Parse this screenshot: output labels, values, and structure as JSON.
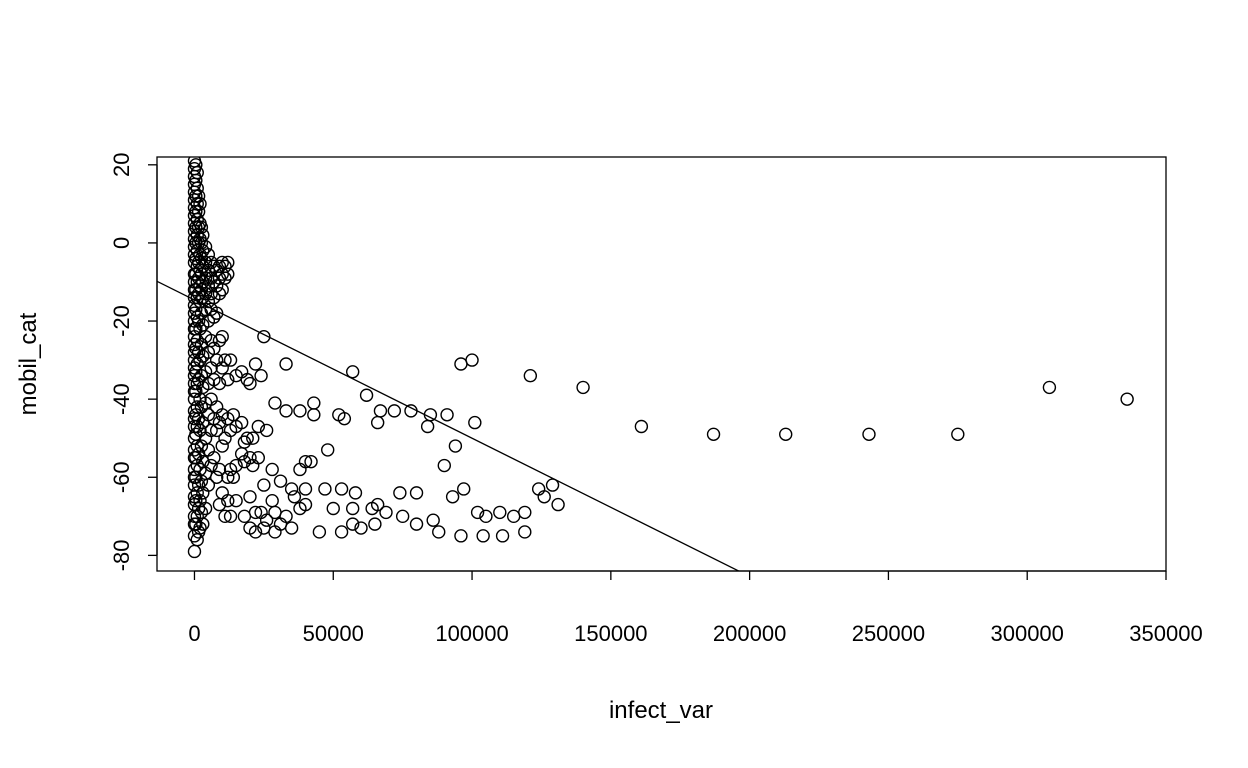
{
  "chart_data": {
    "type": "scatter",
    "title": "",
    "xlabel": "infect_var",
    "ylabel": "mobil_cat",
    "xlim": [
      -13500,
      350000
    ],
    "ylim": [
      -84,
      22
    ],
    "x_ticks": [
      0,
      50000,
      100000,
      150000,
      200000,
      250000,
      300000,
      350000
    ],
    "x_tick_labels": [
      "0",
      "50000",
      "100000",
      "150000",
      "200000",
      "250000",
      "300000",
      "350000"
    ],
    "y_ticks": [
      20,
      0,
      -20,
      -40,
      -60,
      -80
    ],
    "y_tick_labels": [
      "20",
      "0",
      "-20",
      "-40",
      "-60",
      "-80"
    ],
    "grid": false,
    "legend": "none",
    "marker": "open-circle",
    "colors": {
      "points": "#000000",
      "line": "#000000",
      "background": "#ffffff"
    },
    "regression_line": {
      "intercept": -14.6,
      "slope": -0.000354
    },
    "points": [
      [
        0,
        21
      ],
      [
        0,
        19
      ],
      [
        0,
        17
      ],
      [
        0,
        15
      ],
      [
        0,
        13
      ],
      [
        0,
        11
      ],
      [
        0,
        9
      ],
      [
        0,
        7
      ],
      [
        0,
        5
      ],
      [
        0,
        3
      ],
      [
        0,
        1
      ],
      [
        0,
        -1
      ],
      [
        0,
        -3
      ],
      [
        0,
        -5
      ],
      [
        0,
        -8
      ],
      [
        0,
        -10
      ],
      [
        0,
        -12
      ],
      [
        0,
        -14
      ],
      [
        0,
        -16
      ],
      [
        0,
        -18
      ],
      [
        0,
        -20
      ],
      [
        0,
        -22
      ],
      [
        0,
        -24
      ],
      [
        0,
        -26
      ],
      [
        0,
        -28
      ],
      [
        0,
        -30
      ],
      [
        0,
        -32
      ],
      [
        0,
        -34
      ],
      [
        0,
        -36
      ],
      [
        0,
        -38
      ],
      [
        0,
        -40
      ],
      [
        0,
        -43
      ],
      [
        0,
        -45
      ],
      [
        0,
        -47
      ],
      [
        0,
        -50
      ],
      [
        0,
        -53
      ],
      [
        0,
        -55
      ],
      [
        0,
        -58
      ],
      [
        0,
        -60
      ],
      [
        0,
        -62
      ],
      [
        0,
        -65
      ],
      [
        0,
        -67
      ],
      [
        0,
        -70
      ],
      [
        0,
        -72
      ],
      [
        0,
        -75
      ],
      [
        0,
        -79
      ],
      [
        500,
        20
      ],
      [
        500,
        16
      ],
      [
        500,
        12
      ],
      [
        500,
        8
      ],
      [
        500,
        4
      ],
      [
        500,
        0
      ],
      [
        500,
        -4
      ],
      [
        500,
        -8
      ],
      [
        500,
        -12
      ],
      [
        500,
        -17
      ],
      [
        500,
        -22
      ],
      [
        500,
        -27
      ],
      [
        500,
        -33
      ],
      [
        500,
        -38
      ],
      [
        500,
        -44
      ],
      [
        500,
        -49
      ],
      [
        500,
        -55
      ],
      [
        500,
        -60
      ],
      [
        500,
        -66
      ],
      [
        500,
        -72
      ],
      [
        1000,
        18
      ],
      [
        1000,
        14
      ],
      [
        1000,
        10
      ],
      [
        1000,
        6
      ],
      [
        1000,
        2
      ],
      [
        1000,
        -2
      ],
      [
        1000,
        -6
      ],
      [
        1000,
        -10
      ],
      [
        1000,
        -14
      ],
      [
        1000,
        -19
      ],
      [
        1000,
        -25
      ],
      [
        1000,
        -31
      ],
      [
        1000,
        -36
      ],
      [
        1000,
        -42
      ],
      [
        1000,
        -47
      ],
      [
        1000,
        -52
      ],
      [
        1000,
        -57
      ],
      [
        1000,
        -64
      ],
      [
        1000,
        -70
      ],
      [
        1000,
        -76
      ],
      [
        1500,
        12
      ],
      [
        1500,
        8
      ],
      [
        1500,
        4
      ],
      [
        1500,
        0
      ],
      [
        1500,
        -5
      ],
      [
        1500,
        -9
      ],
      [
        1500,
        -13
      ],
      [
        1500,
        -20
      ],
      [
        1500,
        -28
      ],
      [
        1500,
        -35
      ],
      [
        1500,
        -45
      ],
      [
        1500,
        -54
      ],
      [
        1500,
        -62
      ],
      [
        1500,
        -68
      ],
      [
        1500,
        -74
      ],
      [
        2000,
        10
      ],
      [
        2000,
        5
      ],
      [
        2000,
        1
      ],
      [
        2000,
        -3
      ],
      [
        2000,
        -7
      ],
      [
        2000,
        -11
      ],
      [
        2000,
        -15
      ],
      [
        2000,
        -22
      ],
      [
        2000,
        -30
      ],
      [
        2000,
        -40
      ],
      [
        2000,
        -48
      ],
      [
        2000,
        -58
      ],
      [
        2000,
        -66
      ],
      [
        2000,
        -73
      ],
      [
        2500,
        4
      ],
      [
        2500,
        0
      ],
      [
        2500,
        -4
      ],
      [
        2500,
        -8
      ],
      [
        2500,
        -12
      ],
      [
        2500,
        -18
      ],
      [
        2500,
        -26
      ],
      [
        2500,
        -34
      ],
      [
        2500,
        -42
      ],
      [
        2500,
        -52
      ],
      [
        2500,
        -61
      ],
      [
        2500,
        -69
      ],
      [
        3000,
        2
      ],
      [
        3000,
        -2
      ],
      [
        3000,
        -6
      ],
      [
        3000,
        -10
      ],
      [
        3000,
        -14
      ],
      [
        3000,
        -21
      ],
      [
        3000,
        -29
      ],
      [
        3000,
        -37
      ],
      [
        3000,
        -46
      ],
      [
        3000,
        -56
      ],
      [
        3000,
        -64
      ],
      [
        3000,
        -72
      ],
      [
        4000,
        -1
      ],
      [
        4000,
        -5
      ],
      [
        4000,
        -9
      ],
      [
        4000,
        -13
      ],
      [
        4000,
        -17
      ],
      [
        4000,
        -24
      ],
      [
        4000,
        -33
      ],
      [
        4000,
        -41
      ],
      [
        4000,
        -50
      ],
      [
        4000,
        -59
      ],
      [
        4000,
        -68
      ],
      [
        5000,
        -3
      ],
      [
        5000,
        -7
      ],
      [
        5000,
        -11
      ],
      [
        5000,
        -15
      ],
      [
        5000,
        -20
      ],
      [
        5000,
        -28
      ],
      [
        5000,
        -36
      ],
      [
        5000,
        -44
      ],
      [
        5000,
        -53
      ],
      [
        5000,
        -62
      ],
      [
        6000,
        -5
      ],
      [
        6000,
        -9
      ],
      [
        6000,
        -13
      ],
      [
        6000,
        -17
      ],
      [
        6000,
        -25
      ],
      [
        6000,
        -32
      ],
      [
        6000,
        -40
      ],
      [
        6000,
        -48
      ],
      [
        6000,
        -57
      ],
      [
        7000,
        -6
      ],
      [
        7000,
        -10
      ],
      [
        7000,
        -14
      ],
      [
        7000,
        -19
      ],
      [
        7000,
        -27
      ],
      [
        7000,
        -35
      ],
      [
        7000,
        -45
      ],
      [
        7000,
        -55
      ],
      [
        8000,
        -7
      ],
      [
        8000,
        -11
      ],
      [
        8000,
        -18
      ],
      [
        8000,
        -30
      ],
      [
        8000,
        -42
      ],
      [
        8000,
        -48
      ],
      [
        8000,
        -60
      ],
      [
        9000,
        -6
      ],
      [
        9000,
        -9
      ],
      [
        9000,
        -13
      ],
      [
        9000,
        -25
      ],
      [
        9000,
        -36
      ],
      [
        9000,
        -46
      ],
      [
        9000,
        -58
      ],
      [
        9000,
        -67
      ],
      [
        10000,
        -5
      ],
      [
        10000,
        -8
      ],
      [
        10000,
        -12
      ],
      [
        10000,
        -24
      ],
      [
        10000,
        -32
      ],
      [
        10000,
        -44
      ],
      [
        10000,
        -52
      ],
      [
        10000,
        -64
      ],
      [
        11000,
        -6
      ],
      [
        11000,
        -9
      ],
      [
        11000,
        -30
      ],
      [
        11000,
        -50
      ],
      [
        11000,
        -70
      ],
      [
        12000,
        -5
      ],
      [
        12000,
        -8
      ],
      [
        12000,
        -35
      ],
      [
        12000,
        -45
      ],
      [
        12000,
        -60
      ],
      [
        12000,
        -66
      ],
      [
        13000,
        -30
      ],
      [
        13000,
        -48
      ],
      [
        13000,
        -58
      ],
      [
        13000,
        -70
      ],
      [
        14000,
        -44
      ],
      [
        14000,
        -60
      ],
      [
        15000,
        -34
      ],
      [
        15000,
        -47
      ],
      [
        15000,
        -57
      ],
      [
        15000,
        -66
      ],
      [
        17000,
        -33
      ],
      [
        17000,
        -46
      ],
      [
        17000,
        -54
      ],
      [
        18000,
        -51
      ],
      [
        18000,
        -56
      ],
      [
        18000,
        -70
      ],
      [
        19000,
        -35
      ],
      [
        19000,
        -50
      ],
      [
        20000,
        -36
      ],
      [
        20000,
        -55
      ],
      [
        20000,
        -65
      ],
      [
        20000,
        -73
      ],
      [
        21000,
        -50
      ],
      [
        21000,
        -57
      ],
      [
        22000,
        -31
      ],
      [
        22000,
        -69
      ],
      [
        22000,
        -74
      ],
      [
        23000,
        -47
      ],
      [
        23000,
        -55
      ],
      [
        24000,
        -34
      ],
      [
        24000,
        -69
      ],
      [
        25000,
        -24
      ],
      [
        25000,
        -62
      ],
      [
        25000,
        -73
      ],
      [
        26000,
        -48
      ],
      [
        26000,
        -71
      ],
      [
        28000,
        -58
      ],
      [
        28000,
        -66
      ],
      [
        29000,
        -41
      ],
      [
        29000,
        -69
      ],
      [
        29000,
        -74
      ],
      [
        31000,
        -61
      ],
      [
        31000,
        -72
      ],
      [
        33000,
        -31
      ],
      [
        33000,
        -43
      ],
      [
        33000,
        -70
      ],
      [
        35000,
        -63
      ],
      [
        35000,
        -73
      ],
      [
        36000,
        -65
      ],
      [
        38000,
        -43
      ],
      [
        38000,
        -58
      ],
      [
        38000,
        -68
      ],
      [
        40000,
        -56
      ],
      [
        40000,
        -63
      ],
      [
        40000,
        -67
      ],
      [
        42000,
        -56
      ],
      [
        43000,
        -41
      ],
      [
        43000,
        -44
      ],
      [
        45000,
        -74
      ],
      [
        47000,
        -63
      ],
      [
        48000,
        -53
      ],
      [
        50000,
        -68
      ],
      [
        52000,
        -44
      ],
      [
        53000,
        -63
      ],
      [
        53000,
        -74
      ],
      [
        54000,
        -45
      ],
      [
        57000,
        -33
      ],
      [
        57000,
        -68
      ],
      [
        57000,
        -72
      ],
      [
        58000,
        -64
      ],
      [
        60000,
        -73
      ],
      [
        62000,
        -39
      ],
      [
        64000,
        -68
      ],
      [
        65000,
        -72
      ],
      [
        66000,
        -46
      ],
      [
        66000,
        -67
      ],
      [
        67000,
        -43
      ],
      [
        69000,
        -69
      ],
      [
        72000,
        -43
      ],
      [
        74000,
        -64
      ],
      [
        75000,
        -70
      ],
      [
        78000,
        -43
      ],
      [
        80000,
        -64
      ],
      [
        80000,
        -72
      ],
      [
        84000,
        -47
      ],
      [
        85000,
        -44
      ],
      [
        86000,
        -71
      ],
      [
        88000,
        -74
      ],
      [
        90000,
        -57
      ],
      [
        91000,
        -44
      ],
      [
        93000,
        -65
      ],
      [
        94000,
        -52
      ],
      [
        96000,
        -31
      ],
      [
        96000,
        -75
      ],
      [
        97000,
        -63
      ],
      [
        100000,
        -30
      ],
      [
        101000,
        -46
      ],
      [
        102000,
        -69
      ],
      [
        104000,
        -75
      ],
      [
        105000,
        -70
      ],
      [
        110000,
        -69
      ],
      [
        111000,
        -75
      ],
      [
        115000,
        -70
      ],
      [
        119000,
        -69
      ],
      [
        119000,
        -74
      ],
      [
        121000,
        -34
      ],
      [
        124000,
        -63
      ],
      [
        126000,
        -65
      ],
      [
        129000,
        -62
      ],
      [
        131000,
        -67
      ],
      [
        140000,
        -37
      ],
      [
        161000,
        -47
      ],
      [
        187000,
        -49
      ],
      [
        213000,
        -49
      ],
      [
        243000,
        -49
      ],
      [
        275000,
        -49
      ],
      [
        308000,
        -37
      ],
      [
        336000,
        -40
      ]
    ]
  }
}
